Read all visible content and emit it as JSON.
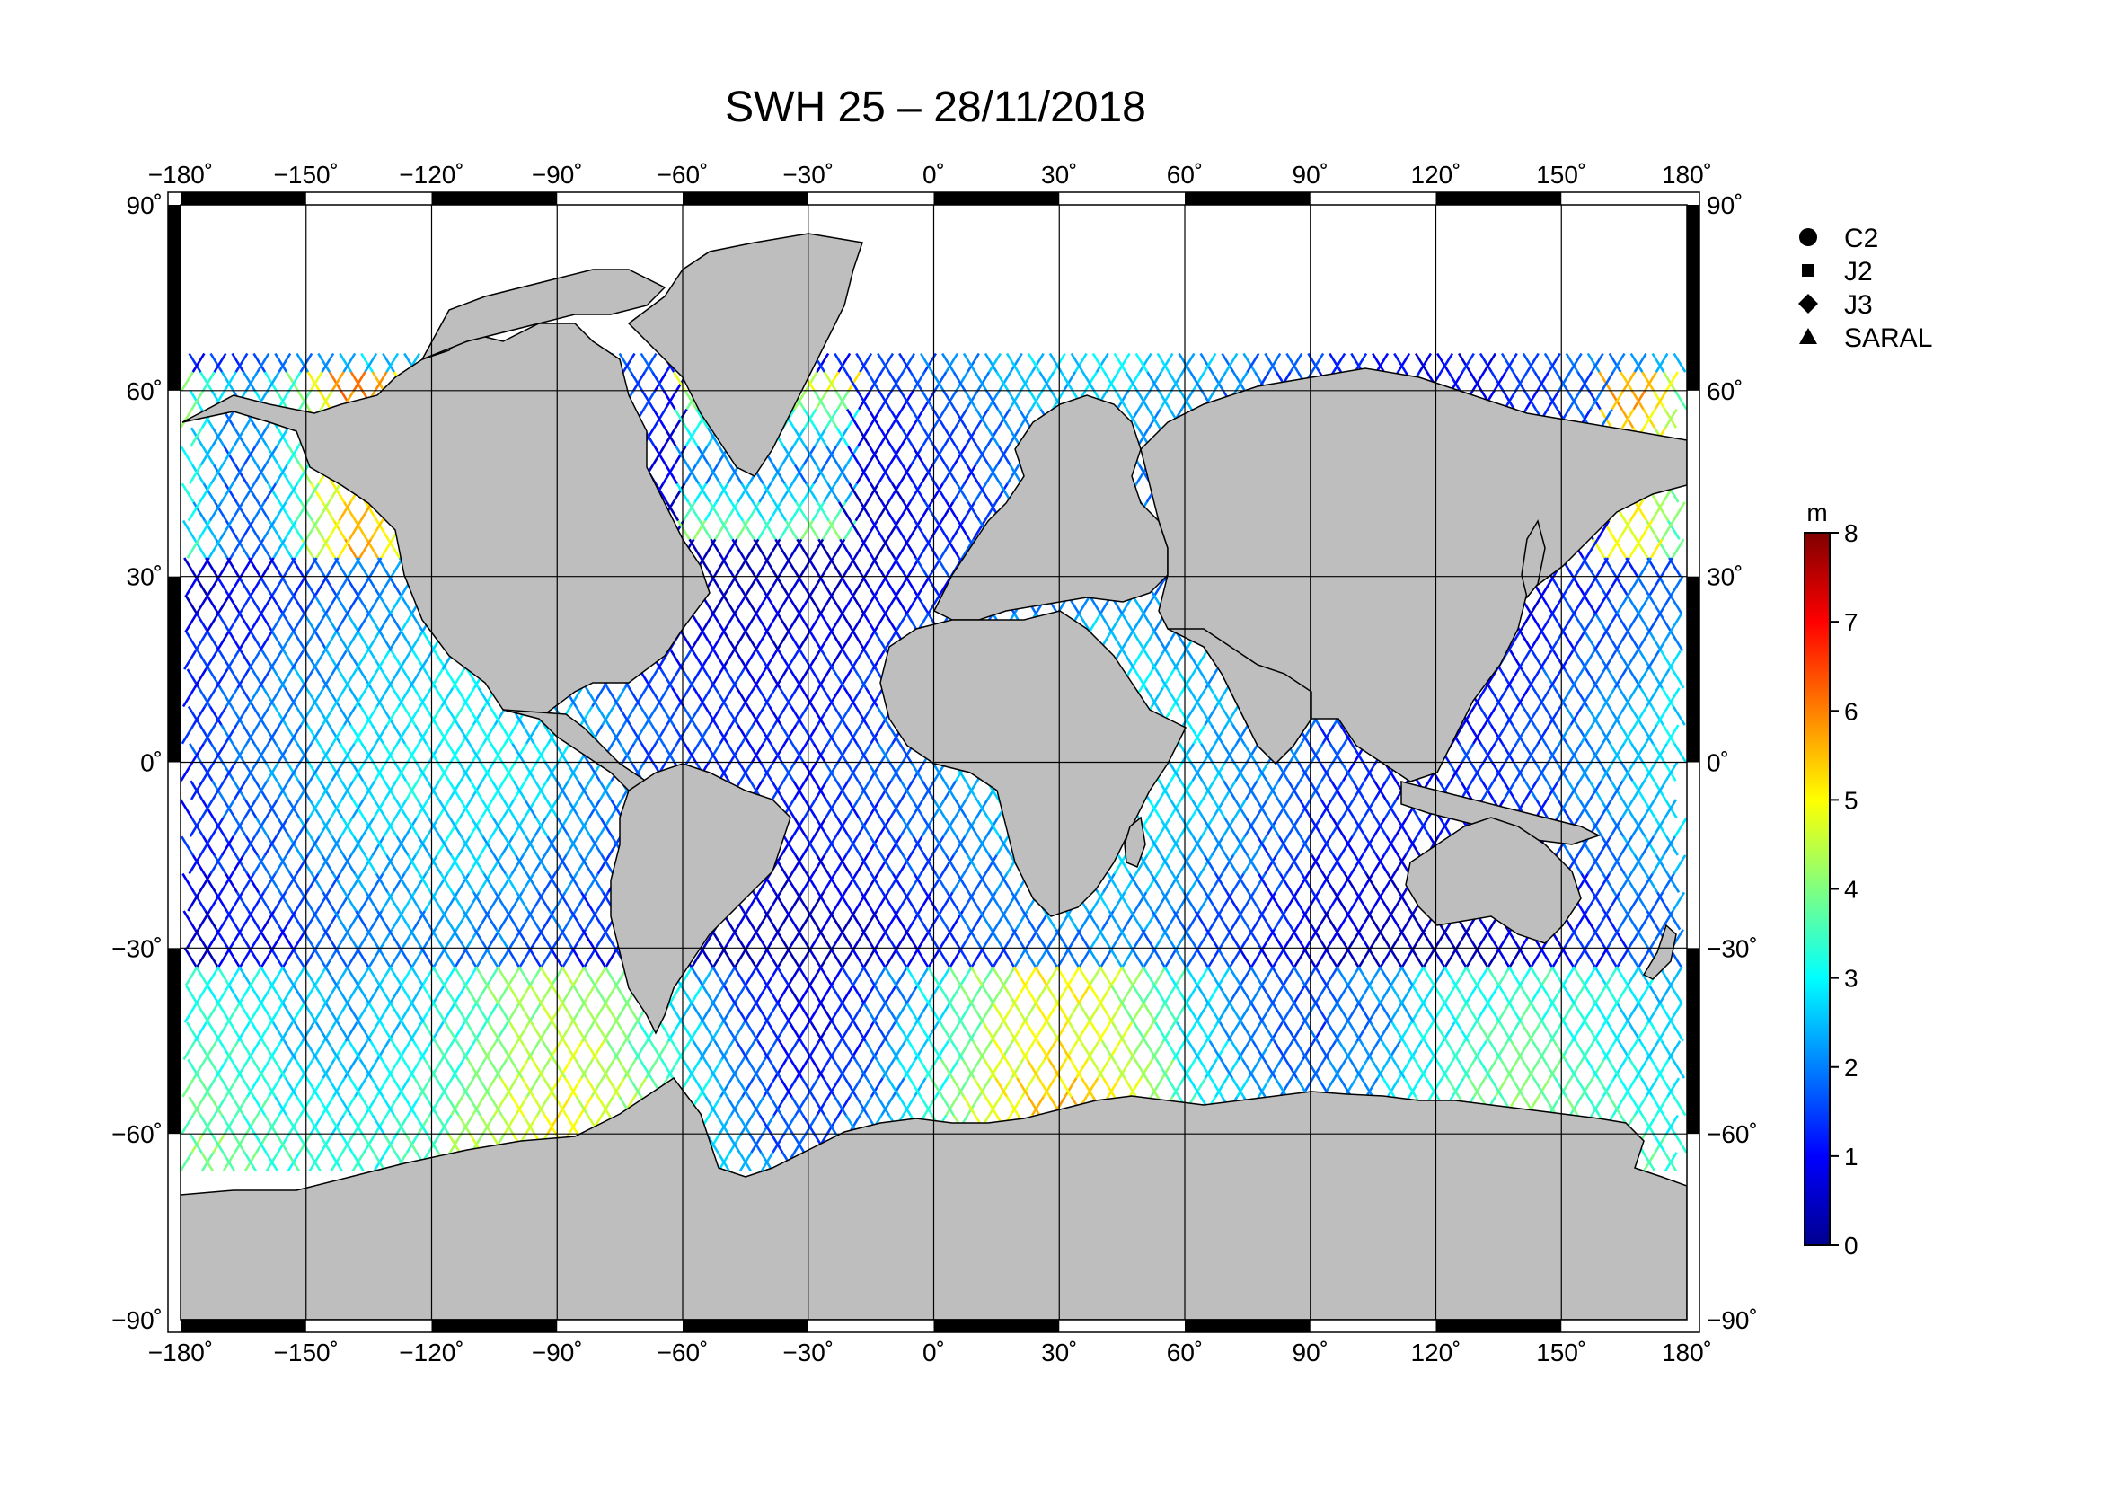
{
  "title": "SWH 25 – 28/11/2018",
  "map": {
    "lon_range": [
      -180,
      180
    ],
    "lat_range": [
      -90,
      90
    ],
    "lon_ticks": [
      "−180˚",
      "−150˚",
      "−120˚",
      "−90˚",
      "−60˚",
      "−30˚",
      "0˚",
      "30˚",
      "60˚",
      "90˚",
      "120˚",
      "150˚",
      "180˚"
    ],
    "lat_ticks": [
      "90˚",
      "60˚",
      "30˚",
      "0˚",
      "−30˚",
      "−60˚",
      "−90˚"
    ],
    "land_color": "#bebebe",
    "grid": true
  },
  "legend": {
    "placement": "top-right",
    "items": [
      {
        "label": "C2",
        "marker": "circle"
      },
      {
        "label": "J2",
        "marker": "square"
      },
      {
        "label": "J3",
        "marker": "diamond"
      },
      {
        "label": "SARAL",
        "marker": "triangle"
      }
    ]
  },
  "colorbar": {
    "unit": "m",
    "min": 0,
    "max": 8,
    "ticks": [
      "0",
      "1",
      "2",
      "3",
      "4",
      "5",
      "6",
      "7",
      "8"
    ],
    "colormap": [
      "#00008f",
      "#0000ff",
      "#0080ff",
      "#00ffff",
      "#80ff80",
      "#ffff00",
      "#ff8000",
      "#ff0000",
      "#800000"
    ]
  }
}
